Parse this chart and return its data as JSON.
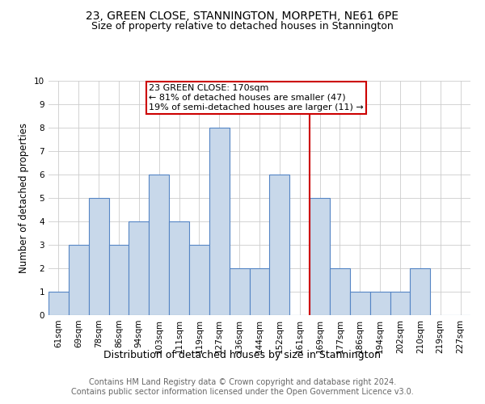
{
  "title": "23, GREEN CLOSE, STANNINGTON, MORPETH, NE61 6PE",
  "subtitle": "Size of property relative to detached houses in Stannington",
  "xlabel": "Distribution of detached houses by size in Stannington",
  "ylabel": "Number of detached properties",
  "categories": [
    "61sqm",
    "69sqm",
    "78sqm",
    "86sqm",
    "94sqm",
    "103sqm",
    "111sqm",
    "119sqm",
    "127sqm",
    "136sqm",
    "144sqm",
    "152sqm",
    "161sqm",
    "169sqm",
    "177sqm",
    "186sqm",
    "194sqm",
    "202sqm",
    "210sqm",
    "219sqm",
    "227sqm"
  ],
  "values": [
    1,
    3,
    5,
    3,
    4,
    6,
    4,
    3,
    8,
    2,
    2,
    6,
    0,
    5,
    2,
    1,
    1,
    1,
    2,
    0,
    0
  ],
  "bar_color": "#c8d8ea",
  "bar_edge_color": "#5585c5",
  "ref_line_index": 13,
  "annotation_text": "23 GREEN CLOSE: 170sqm\n← 81% of detached houses are smaller (47)\n19% of semi-detached houses are larger (11) →",
  "annotation_box_color": "#ffffff",
  "annotation_box_edge_color": "#cc0000",
  "ylim": [
    0,
    10
  ],
  "yticks": [
    0,
    1,
    2,
    3,
    4,
    5,
    6,
    7,
    8,
    9,
    10
  ],
  "grid_color": "#cccccc",
  "footer_text": "Contains HM Land Registry data © Crown copyright and database right 2024.\nContains public sector information licensed under the Open Government Licence v3.0.",
  "title_fontsize": 10,
  "subtitle_fontsize": 9,
  "xlabel_fontsize": 9,
  "ylabel_fontsize": 8.5,
  "tick_fontsize": 7.5,
  "annotation_fontsize": 8,
  "footer_fontsize": 7
}
